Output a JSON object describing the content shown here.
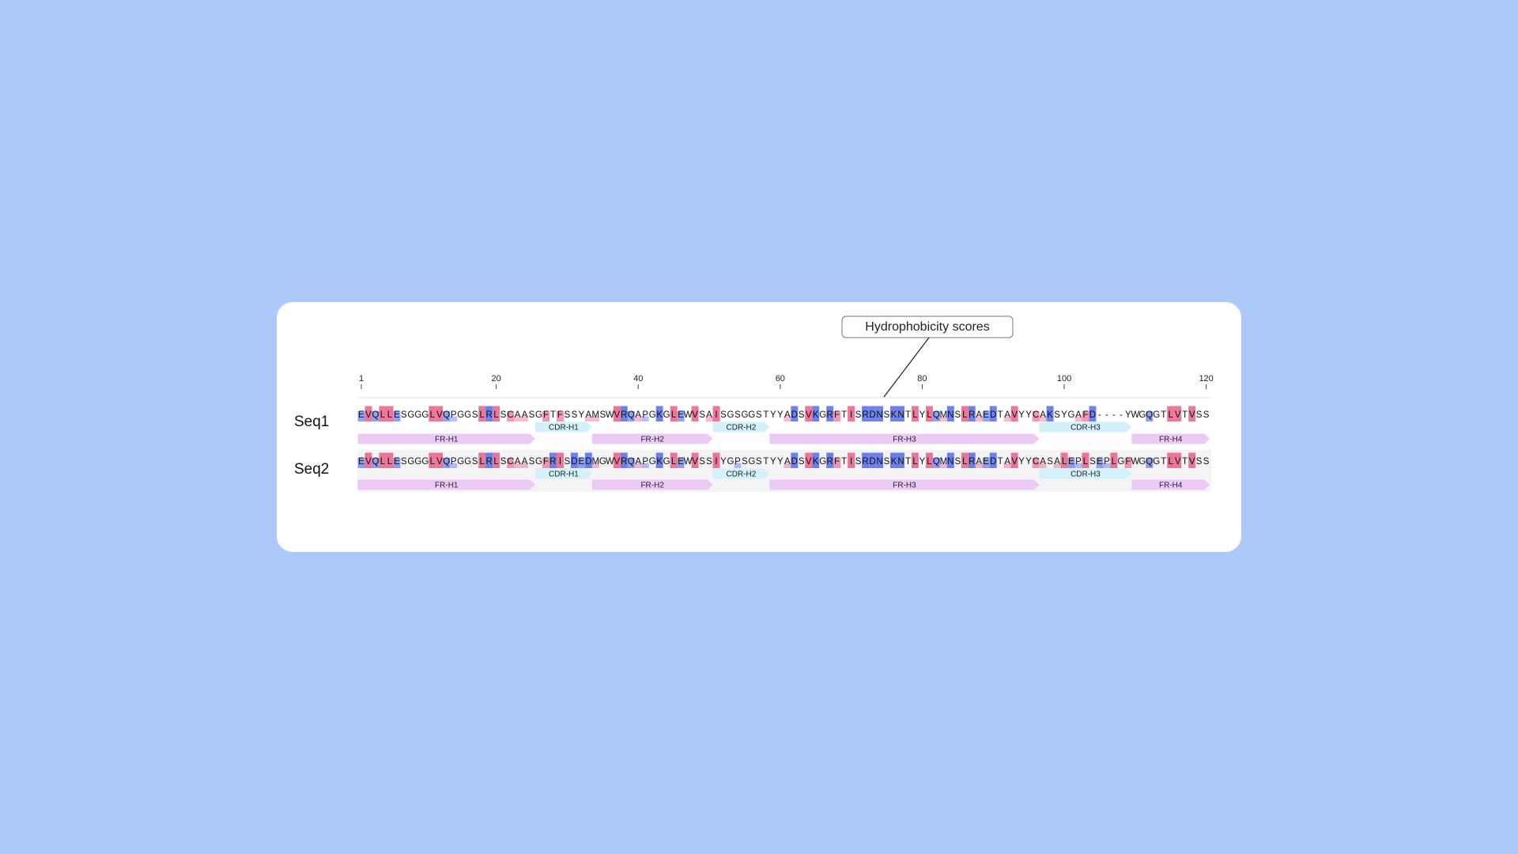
{
  "callout": "Hydrophobicity scores",
  "axis": {
    "ticks": [
      1,
      20,
      40,
      60,
      80,
      100,
      120
    ]
  },
  "sequences": [
    {
      "name": "Seq1",
      "residues": "EVQLLESGGGLVQPGGSLRLSCAASGFTFSSYAMSWVRQAPGKGLEWVSAISGSGGSTYYADSVKGRFTISRDNSKNTLYLQMNSLRAEDTAVYYCAKSYGAFD----YWGQGTLVTVSS",
      "scores": [
        -2,
        3,
        -2,
        3,
        3,
        -2,
        0,
        0,
        0,
        0,
        3,
        3,
        -2,
        -1,
        0,
        0,
        0,
        3,
        -3,
        3,
        0,
        2,
        1,
        1,
        0,
        0,
        2,
        0,
        2,
        0,
        0,
        0,
        1,
        1,
        0,
        0,
        3,
        -3,
        -2,
        1,
        -1,
        0,
        -3,
        0,
        3,
        -2,
        0,
        3,
        0,
        1,
        3,
        0,
        0,
        0,
        0,
        0,
        0,
        0,
        0,
        0,
        1,
        -3,
        0,
        3,
        -3,
        0,
        -3,
        2,
        0,
        3,
        0,
        -3,
        -3,
        -3,
        0,
        -3,
        -3,
        0,
        3,
        0,
        3,
        -2,
        1,
        -3,
        0,
        3,
        -3,
        1,
        -2,
        -3,
        0,
        1,
        3,
        0,
        0,
        2,
        1,
        -3,
        0,
        0,
        0,
        1,
        2,
        -3,
        null,
        null,
        null,
        null,
        0,
        0,
        0,
        -2,
        0,
        0,
        3,
        3,
        0,
        3,
        0,
        0
      ],
      "regions": [
        {
          "label": "FR-H1",
          "start": 1,
          "end": 25
        },
        {
          "label": "CDR-H1",
          "start": 26,
          "end": 33
        },
        {
          "label": "FR-H2",
          "start": 34,
          "end": 50
        },
        {
          "label": "CDR-H2",
          "start": 51,
          "end": 58
        },
        {
          "label": "FR-H3",
          "start": 59,
          "end": 96
        },
        {
          "label": "CDR-H3",
          "start": 97,
          "end": 109
        },
        {
          "label": "FR-H4",
          "start": 110,
          "end": 120
        }
      ]
    },
    {
      "name": "Seq2",
      "residues": "EVQLLESGGGLVQPGGSLRLSCAASGFRISDEDMGWVRQAPGKGLEWVSSIYGPSGSTYYADSVKGRFTISRDNSKNTLYLQMNSLRAEDTAVYYCASALEPLSEPLGFWGQGTLVTVSS",
      "scores": [
        -2,
        3,
        -2,
        3,
        3,
        -2,
        0,
        0,
        0,
        0,
        3,
        3,
        -2,
        -1,
        0,
        0,
        0,
        3,
        -3,
        3,
        0,
        2,
        1,
        1,
        0,
        0,
        2,
        -3,
        3,
        0,
        -3,
        -2,
        -3,
        1,
        0,
        0,
        3,
        -3,
        -2,
        1,
        -1,
        0,
        -3,
        0,
        3,
        -2,
        0,
        3,
        0,
        0,
        3,
        0,
        0,
        -1,
        0,
        0,
        0,
        0,
        0,
        0,
        1,
        -3,
        0,
        3,
        -3,
        0,
        -3,
        2,
        0,
        3,
        0,
        -3,
        -3,
        -3,
        0,
        -3,
        -3,
        0,
        3,
        0,
        3,
        -2,
        1,
        -3,
        0,
        3,
        -3,
        1,
        -2,
        -3,
        0,
        1,
        3,
        0,
        0,
        2,
        1,
        0,
        1,
        3,
        -2,
        -1,
        3,
        0,
        -2,
        -1,
        3,
        0,
        2,
        0,
        0,
        -2,
        0,
        0,
        3,
        3,
        0,
        3,
        0,
        0
      ],
      "regions": [
        {
          "label": "FR-H1",
          "start": 1,
          "end": 25
        },
        {
          "label": "CDR-H1",
          "start": 26,
          "end": 33
        },
        {
          "label": "FR-H2",
          "start": 34,
          "end": 50
        },
        {
          "label": "CDR-H2",
          "start": 51,
          "end": 58
        },
        {
          "label": "FR-H3",
          "start": 59,
          "end": 96
        },
        {
          "label": "CDR-H3",
          "start": 97,
          "end": 109
        },
        {
          "label": "FR-H4",
          "start": 110,
          "end": 120
        }
      ]
    }
  ]
}
